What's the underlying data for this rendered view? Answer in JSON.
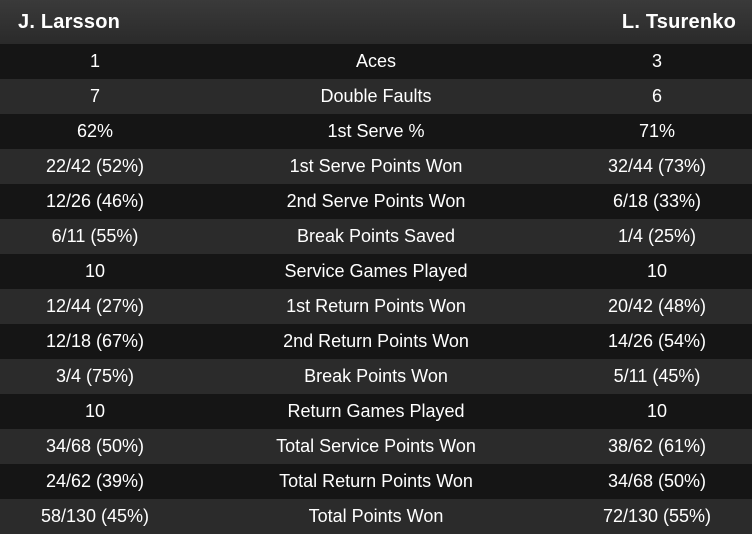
{
  "players": {
    "left": "J. Larsson",
    "right": "L. Tsurenko"
  },
  "rows": [
    {
      "left": "1",
      "label": "Aces",
      "right": "3"
    },
    {
      "left": "7",
      "label": "Double Faults",
      "right": "6"
    },
    {
      "left": "62%",
      "label": "1st Serve %",
      "right": "71%"
    },
    {
      "left": "22/42 (52%)",
      "label": "1st Serve Points Won",
      "right": "32/44 (73%)"
    },
    {
      "left": "12/26 (46%)",
      "label": "2nd Serve Points Won",
      "right": "6/18 (33%)"
    },
    {
      "left": "6/11 (55%)",
      "label": "Break Points Saved",
      "right": "1/4 (25%)"
    },
    {
      "left": "10",
      "label": "Service Games Played",
      "right": "10"
    },
    {
      "left": "12/44 (27%)",
      "label": "1st Return Points Won",
      "right": "20/42 (48%)"
    },
    {
      "left": "12/18 (67%)",
      "label": "2nd Return Points Won",
      "right": "14/26 (54%)"
    },
    {
      "left": "3/4 (75%)",
      "label": "Break Points Won",
      "right": "5/11 (45%)"
    },
    {
      "left": "10",
      "label": "Return Games Played",
      "right": "10"
    },
    {
      "left": "34/68 (50%)",
      "label": "Total Service Points Won",
      "right": "38/62 (61%)"
    },
    {
      "left": "24/62 (39%)",
      "label": "Total Return Points Won",
      "right": "34/68 (50%)"
    },
    {
      "left": "58/130 (45%)",
      "label": "Total Points Won",
      "right": "72/130 (55%)"
    }
  ]
}
